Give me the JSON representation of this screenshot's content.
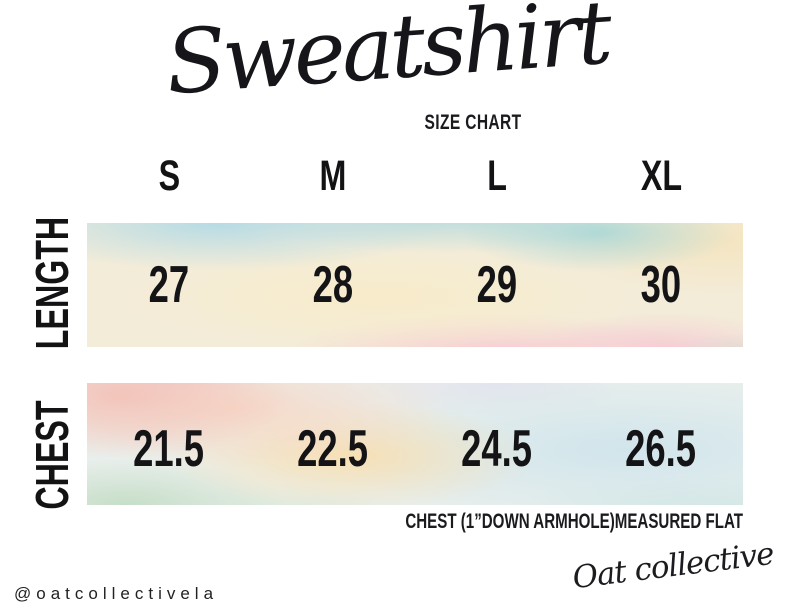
{
  "title": {
    "script": "Sweatshirt",
    "subtitle": "SIZE CHART"
  },
  "table": {
    "sizes": [
      "S",
      "M",
      "L",
      "XL"
    ],
    "rows": [
      {
        "label": "LENGTH",
        "values": [
          "27",
          "28",
          "29",
          "30"
        ]
      },
      {
        "label": "CHEST",
        "values": [
          "21.5",
          "22.5",
          "24.5",
          "26.5"
        ]
      }
    ]
  },
  "footnote": "CHEST (1”DOWN ARMHOLE)MEASURED FLAT",
  "footer": {
    "handle": "@oatcollectivela",
    "brand": "Oat collective"
  },
  "colors": {
    "text": "#141414",
    "background": "#ffffff",
    "watercolor_palette": [
      "#afd9e6",
      "#96d2d7",
      "#f9ebc8",
      "#f8c6d2",
      "#f3c3b9",
      "#fadcaa",
      "#c4ddc6",
      "#cee4ec",
      "#e0dcee"
    ]
  },
  "chart_data": {
    "type": "table",
    "title": "Sweatshirt Size Chart",
    "categories": [
      "S",
      "M",
      "L",
      "XL"
    ],
    "series": [
      {
        "name": "LENGTH",
        "values": [
          27,
          28,
          29,
          30
        ]
      },
      {
        "name": "CHEST",
        "values": [
          21.5,
          22.5,
          24.5,
          26.5
        ]
      }
    ],
    "note": "CHEST (1”DOWN ARMHOLE)MEASURED FLAT"
  }
}
